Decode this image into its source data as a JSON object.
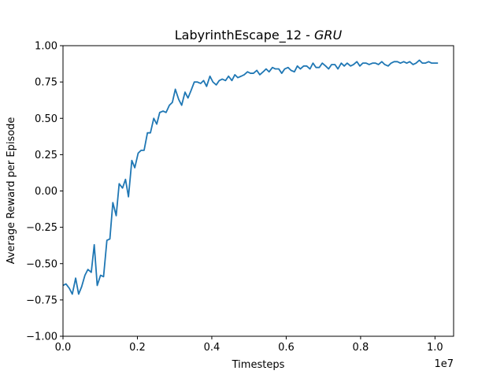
{
  "chart_data": {
    "type": "line",
    "title": "LabyrinthEscape_12 - ",
    "title_italic": "GRU",
    "xlabel": "Timesteps",
    "ylabel": "Average Reward per Episode",
    "x_multiplier_label": "1e7",
    "xlim": [
      0,
      1.05
    ],
    "ylim": [
      -1.0,
      1.0
    ],
    "x_ticks": [
      0.0,
      0.2,
      0.4,
      0.6,
      0.8,
      1.0
    ],
    "x_tick_labels": [
      "0.0",
      "0.2",
      "0.4",
      "0.6",
      "0.8",
      "1.0"
    ],
    "y_ticks": [
      -1.0,
      -0.75,
      -0.5,
      -0.25,
      0.0,
      0.25,
      0.5,
      0.75,
      1.0
    ],
    "y_tick_labels": [
      "−1.00",
      "−0.75",
      "−0.50",
      "−0.25",
      "0.00",
      "0.25",
      "0.50",
      "0.75",
      "1.00"
    ],
    "grid": false,
    "line_color": "#1f77b4",
    "series": [
      {
        "x": [
          0.0,
          0.008,
          0.017,
          0.025,
          0.034,
          0.042,
          0.05,
          0.059,
          0.067,
          0.076,
          0.084,
          0.092,
          0.101,
          0.109,
          0.118,
          0.126,
          0.134,
          0.143,
          0.151,
          0.16,
          0.168,
          0.176,
          0.185,
          0.193,
          0.202,
          0.21,
          0.218,
          0.227,
          0.235,
          0.244,
          0.252,
          0.26,
          0.269,
          0.277,
          0.286,
          0.294,
          0.302,
          0.311,
          0.319,
          0.328,
          0.336,
          0.344,
          0.353,
          0.361,
          0.37,
          0.378,
          0.386,
          0.395,
          0.403,
          0.412,
          0.42,
          0.428,
          0.437,
          0.445,
          0.454,
          0.462,
          0.47,
          0.479,
          0.487,
          0.496,
          0.504,
          0.512,
          0.521,
          0.529,
          0.538,
          0.546,
          0.554,
          0.563,
          0.571,
          0.58,
          0.588,
          0.596,
          0.605,
          0.613,
          0.622,
          0.63,
          0.638,
          0.647,
          0.655,
          0.664,
          0.672,
          0.68,
          0.689,
          0.697,
          0.706,
          0.714,
          0.722,
          0.731,
          0.739,
          0.748,
          0.756,
          0.764,
          0.773,
          0.781,
          0.79,
          0.798,
          0.806,
          0.815,
          0.823,
          0.832,
          0.84,
          0.848,
          0.857,
          0.865,
          0.874,
          0.882,
          0.89,
          0.899,
          0.907,
          0.916,
          0.924,
          0.932,
          0.941,
          0.949,
          0.958,
          0.966,
          0.974,
          0.983,
          0.991,
          1.0,
          1.008
        ],
        "y": [
          -0.65,
          -0.64,
          -0.67,
          -0.71,
          -0.6,
          -0.71,
          -0.66,
          -0.58,
          -0.54,
          -0.56,
          -0.37,
          -0.65,
          -0.58,
          -0.59,
          -0.34,
          -0.33,
          -0.08,
          -0.17,
          0.05,
          0.02,
          0.08,
          -0.04,
          0.21,
          0.16,
          0.26,
          0.28,
          0.28,
          0.4,
          0.4,
          0.5,
          0.46,
          0.54,
          0.55,
          0.54,
          0.59,
          0.61,
          0.7,
          0.63,
          0.59,
          0.68,
          0.64,
          0.69,
          0.75,
          0.75,
          0.74,
          0.76,
          0.72,
          0.79,
          0.75,
          0.73,
          0.76,
          0.77,
          0.76,
          0.79,
          0.76,
          0.8,
          0.78,
          0.79,
          0.8,
          0.82,
          0.81,
          0.81,
          0.83,
          0.8,
          0.82,
          0.84,
          0.82,
          0.85,
          0.84,
          0.84,
          0.81,
          0.84,
          0.85,
          0.83,
          0.82,
          0.86,
          0.84,
          0.86,
          0.86,
          0.84,
          0.88,
          0.85,
          0.85,
          0.88,
          0.86,
          0.84,
          0.87,
          0.87,
          0.84,
          0.88,
          0.86,
          0.88,
          0.86,
          0.87,
          0.89,
          0.86,
          0.88,
          0.88,
          0.87,
          0.88,
          0.88,
          0.87,
          0.89,
          0.87,
          0.86,
          0.88,
          0.89,
          0.89,
          0.88,
          0.89,
          0.88,
          0.89,
          0.87,
          0.88,
          0.9,
          0.88,
          0.88,
          0.89,
          0.88,
          0.88,
          0.88
        ]
      }
    ]
  }
}
